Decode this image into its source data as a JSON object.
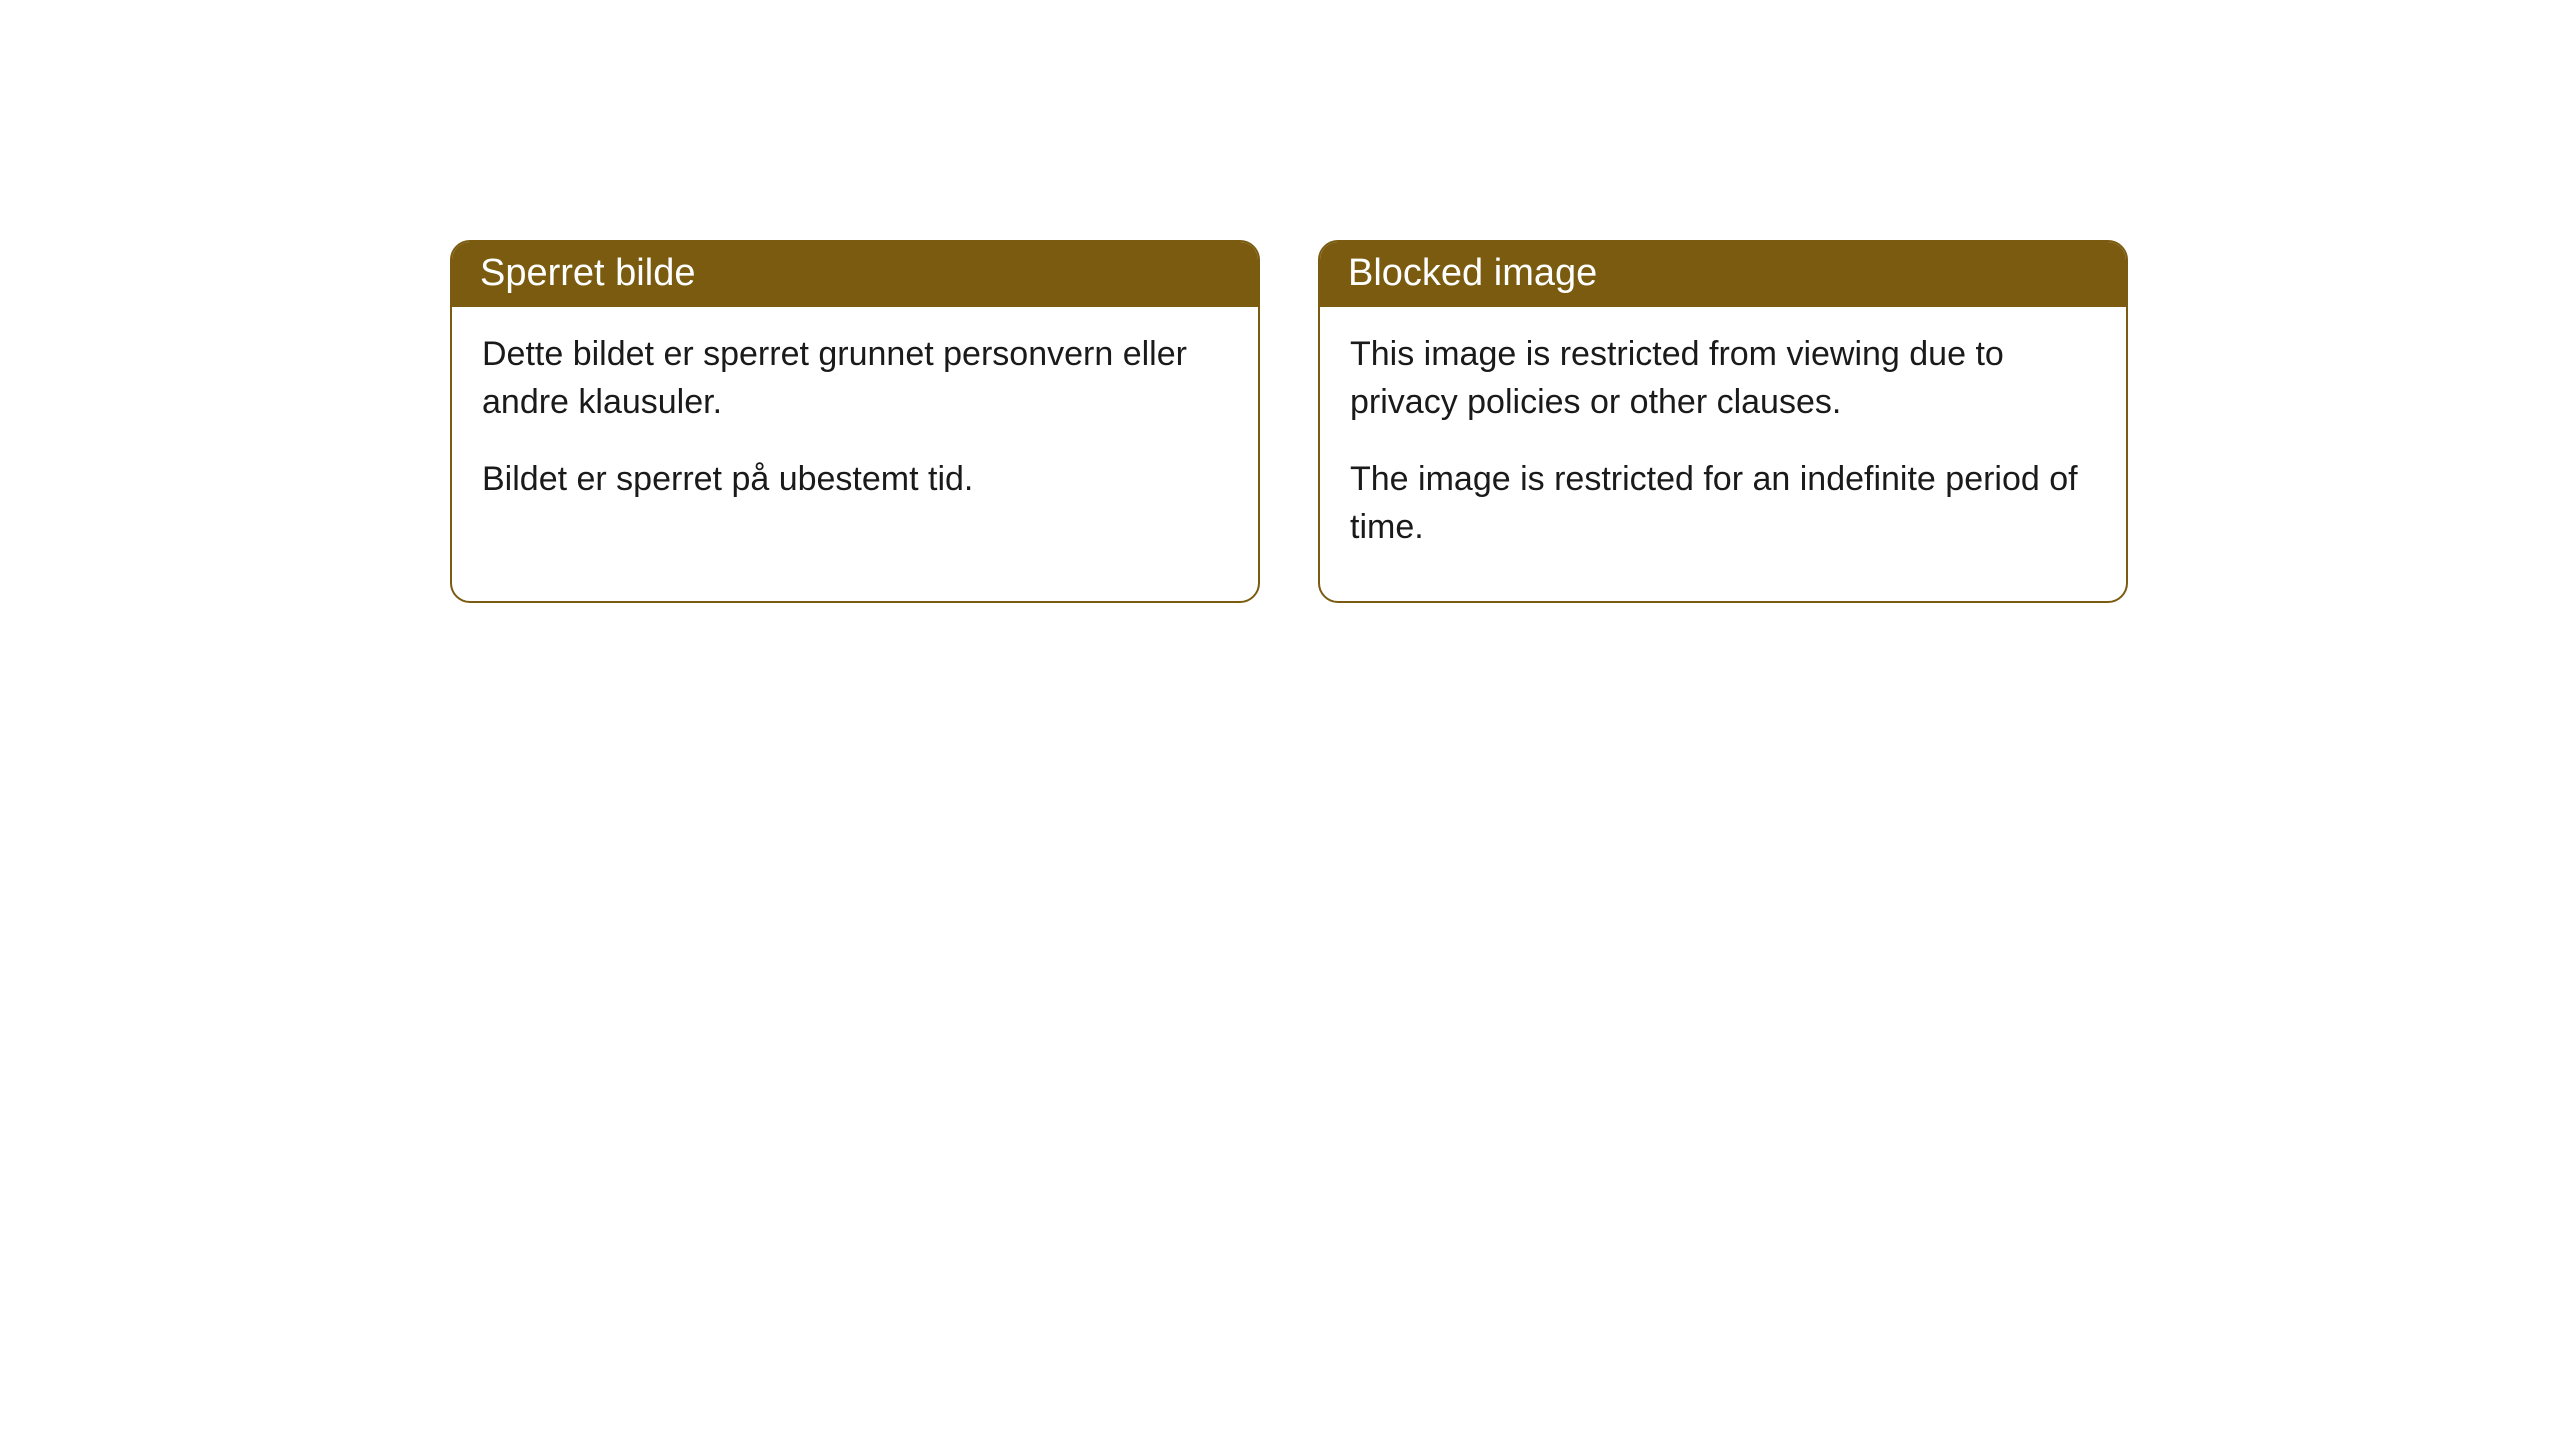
{
  "cards": [
    {
      "title": "Sperret bilde",
      "paragraph1": "Dette bildet er sperret grunnet personvern eller andre klausuler.",
      "paragraph2": "Bildet er sperret på ubestemt tid."
    },
    {
      "title": "Blocked image",
      "paragraph1": "This image is restricted from viewing due to privacy policies or other clauses.",
      "paragraph2": "The image is restricted for an indefinite period of time."
    }
  ],
  "styling": {
    "header_background_color": "#7a5b10",
    "header_text_color": "#ffffff",
    "border_color": "#7a5b10",
    "body_background_color": "#ffffff",
    "body_text_color": "#1a1a1a",
    "border_radius": 20,
    "header_fontsize": 38,
    "body_fontsize": 34
  }
}
